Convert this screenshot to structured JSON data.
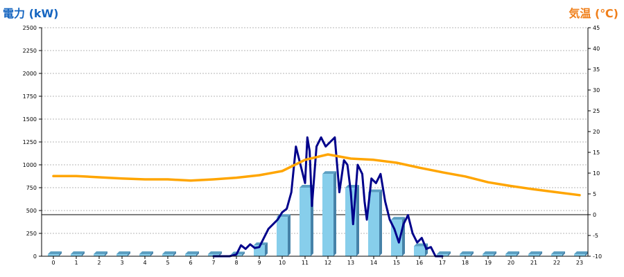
{
  "chart_data": {
    "type": "bar",
    "title": "",
    "xlabel": "",
    "ylabel": "電力 (kW)",
    "y2label": "気温 (℃)",
    "categories": [
      "0",
      "1",
      "2",
      "3",
      "4",
      "5",
      "6",
      "7",
      "8",
      "9",
      "10",
      "11",
      "12",
      "13",
      "14",
      "15",
      "16",
      "17",
      "18",
      "19",
      "20",
      "21",
      "22",
      "23"
    ],
    "ylim": [
      0,
      2500
    ],
    "y_ticks": [
      0,
      250,
      500,
      750,
      1000,
      1250,
      1500,
      1750,
      2000,
      2250,
      2500
    ],
    "y2lim": [
      -10,
      45
    ],
    "y2_ticks": [
      -10,
      -5,
      0,
      5,
      10,
      15,
      20,
      25,
      30,
      35,
      40,
      45
    ],
    "grid": true,
    "colors": {
      "bars": "#87ceeb",
      "power_line": "#00008b",
      "temperature_line": "#ffa500",
      "left_axis_title": "#1565c0",
      "right_axis_title": "#f07f1a"
    },
    "series": [
      {
        "kind": "bar",
        "axis": "left",
        "values": [
          0,
          0,
          0,
          0,
          0,
          0,
          0,
          0,
          20,
          120,
          430,
          750,
          900,
          750,
          700,
          400,
          110,
          0,
          0,
          0,
          0,
          0,
          0,
          0
        ]
      },
      {
        "kind": "line",
        "axis": "left",
        "x": [
          7.0,
          7.3,
          7.5,
          7.7,
          8.0,
          8.2,
          8.4,
          8.6,
          8.8,
          9.0,
          9.2,
          9.4,
          9.6,
          9.8,
          10.0,
          10.2,
          10.4,
          10.6,
          10.8,
          11.0,
          11.1,
          11.2,
          11.3,
          11.5,
          11.7,
          11.9,
          12.1,
          12.3,
          12.5,
          12.7,
          12.85,
          13.0,
          13.1,
          13.3,
          13.5,
          13.6,
          13.7,
          13.9,
          14.1,
          14.3,
          14.5,
          14.7,
          14.9,
          15.1,
          15.3,
          15.5,
          15.7,
          15.9,
          16.1,
          16.3,
          16.5,
          16.7,
          17.0
        ],
        "values": [
          0,
          0,
          0,
          0,
          20,
          120,
          80,
          130,
          90,
          100,
          200,
          300,
          350,
          400,
          480,
          520,
          700,
          1200,
          1000,
          800,
          1300,
          1150,
          550,
          1200,
          1300,
          1200,
          1250,
          1300,
          700,
          1050,
          1000,
          700,
          350,
          1000,
          900,
          600,
          400,
          850,
          800,
          900,
          600,
          400,
          300,
          150,
          350,
          450,
          250,
          150,
          200,
          80,
          100,
          0,
          0
        ]
      },
      {
        "kind": "line",
        "axis": "right",
        "name": "",
        "x": [
          0,
          1,
          2,
          3,
          4,
          5,
          6,
          7,
          8,
          9,
          10,
          11,
          12,
          13,
          14,
          15,
          16,
          17,
          18,
          19,
          20,
          21,
          22,
          23
        ],
        "values": [
          9.3,
          9.3,
          9.0,
          8.7,
          8.5,
          8.5,
          8.2,
          8.5,
          8.9,
          9.5,
          10.5,
          13.2,
          14.5,
          13.5,
          13.2,
          12.5,
          11.3,
          10.2,
          9.2,
          7.8,
          6.9,
          6.1,
          5.4,
          4.7
        ]
      }
    ]
  }
}
